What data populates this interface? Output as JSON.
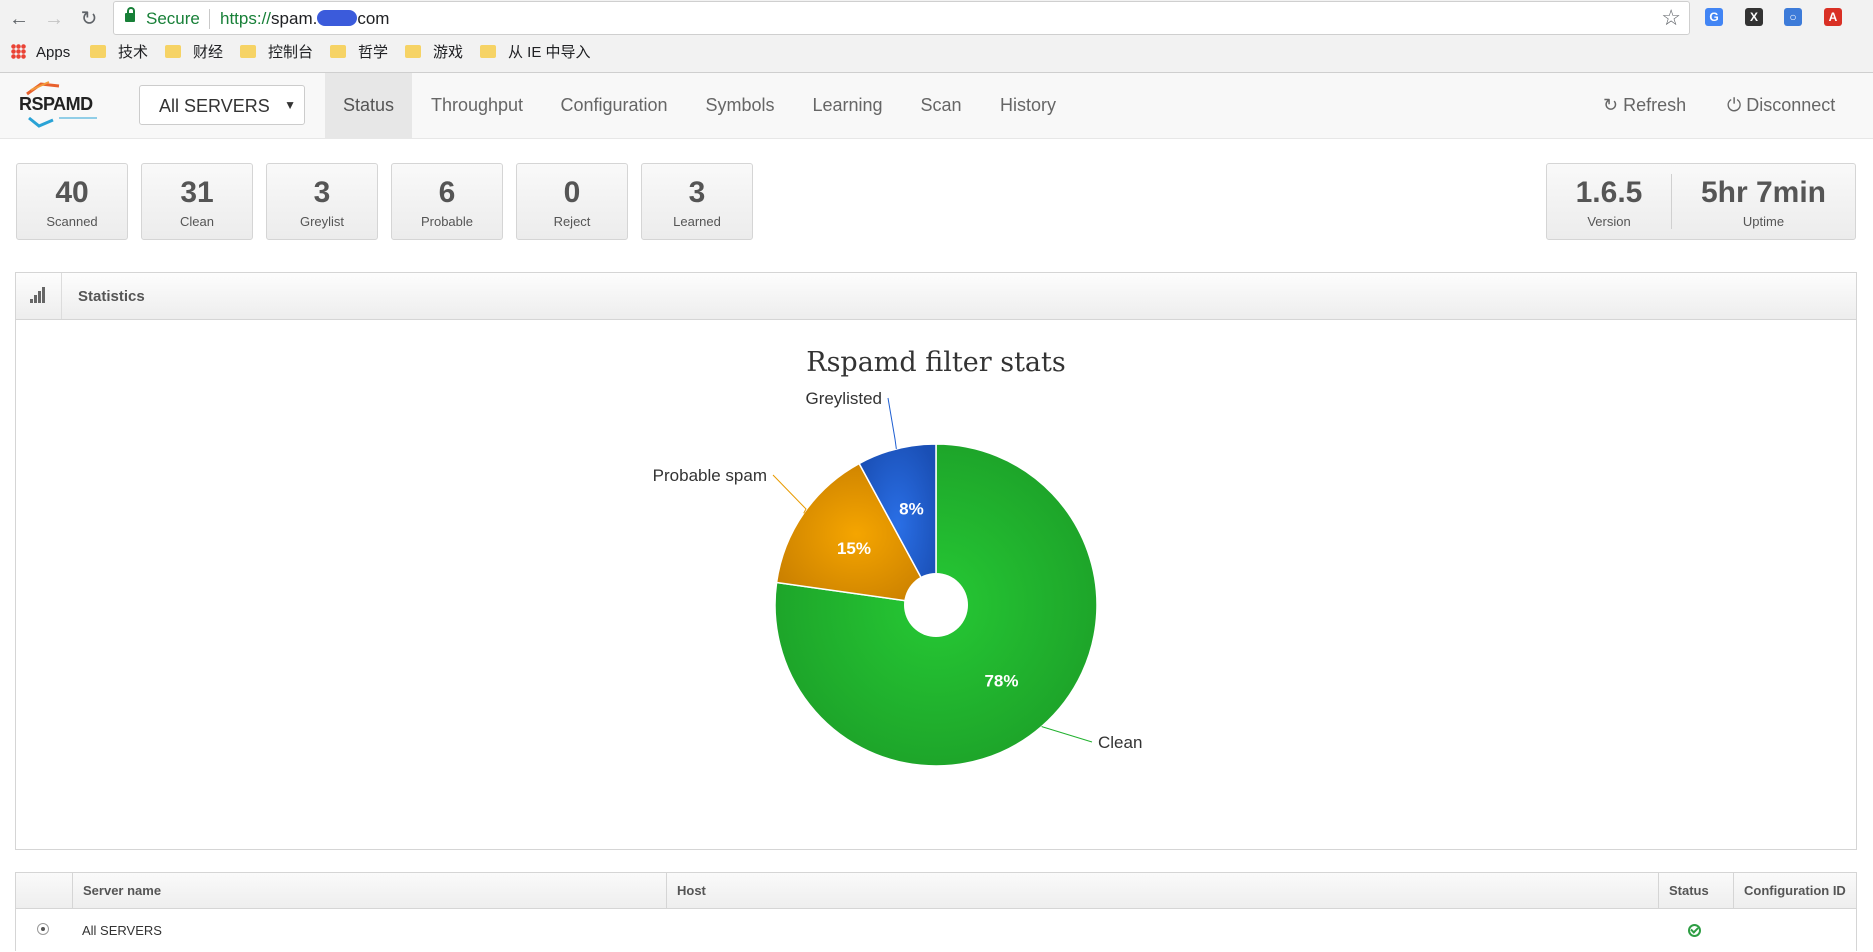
{
  "browser": {
    "secure_label": "Secure",
    "url_scheme": "https://",
    "url_host_start": "spam.",
    "url_host_end": "com",
    "bookmarks": [
      "Apps",
      "技术",
      "财经",
      "控制台",
      "哲学",
      "游戏",
      "从 IE 中导入"
    ]
  },
  "app": {
    "logo_text": "RSPAMD",
    "server_select": "All SERVERS",
    "tabs": [
      "Status",
      "Throughput",
      "Configuration",
      "Symbols",
      "Learning",
      "Scan",
      "History"
    ],
    "active_tab": "Status",
    "refresh_label": "Refresh",
    "disconnect_label": "Disconnect"
  },
  "stats": [
    {
      "value": "40",
      "label": "Scanned"
    },
    {
      "value": "31",
      "label": "Clean"
    },
    {
      "value": "3",
      "label": "Greylist"
    },
    {
      "value": "6",
      "label": "Probable"
    },
    {
      "value": "0",
      "label": "Reject"
    },
    {
      "value": "3",
      "label": "Learned"
    }
  ],
  "info": {
    "version_value": "1.6.5",
    "version_label": "Version",
    "uptime_value": "5hr 7min",
    "uptime_label": "Uptime"
  },
  "widget": {
    "title": "Statistics"
  },
  "chart_data": {
    "type": "pie",
    "title": "Rspamd filter stats",
    "donut": true,
    "slices": [
      {
        "name": "Clean",
        "value": 78,
        "label": "78%",
        "color": "#21b12e"
      },
      {
        "name": "Probable spam",
        "value": 15,
        "label": "15%",
        "color": "#e89a00"
      },
      {
        "name": "Greylisted",
        "value": 8,
        "label": "8%",
        "color": "#1f5fd1"
      }
    ]
  },
  "servers": {
    "columns": [
      "Server name",
      "Host",
      "Status",
      "Configuration ID"
    ],
    "rows": [
      {
        "name": "All SERVERS",
        "host": "",
        "status": "ok",
        "config_id": ""
      }
    ]
  }
}
